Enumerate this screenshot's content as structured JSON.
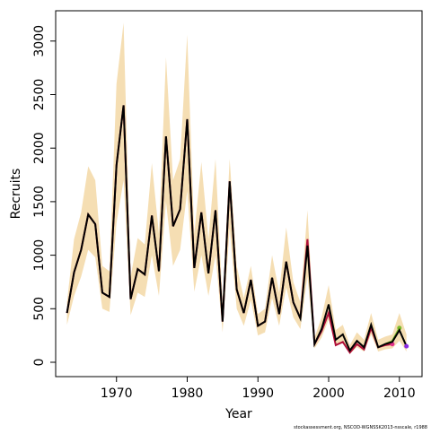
{
  "chart_data": {
    "type": "line",
    "xlabel": "Year",
    "ylabel": "Recruits",
    "footnote": "stockassessment.org, NSCOD-WGNSSK2013-nsscale, r1988",
    "x": [
      1963,
      1964,
      1965,
      1966,
      1967,
      1968,
      1969,
      1970,
      1971,
      1972,
      1973,
      1974,
      1975,
      1976,
      1977,
      1978,
      1979,
      1980,
      1981,
      1982,
      1983,
      1984,
      1985,
      1986,
      1987,
      1988,
      1989,
      1990,
      1991,
      1992,
      1993,
      1994,
      1995,
      1996,
      1997,
      1998,
      1999,
      2000,
      2001,
      2002,
      2003,
      2004,
      2005,
      2006,
      2007,
      2008,
      2009,
      2010,
      2011
    ],
    "band": {
      "color": "#f5deb3",
      "upper": [
        560,
        1150,
        1400,
        1830,
        1700,
        900,
        850,
        2600,
        3170,
        800,
        1160,
        1100,
        1860,
        1200,
        2850,
        1700,
        1900,
        3060,
        1200,
        1870,
        1150,
        1900,
        550,
        1900,
        900,
        600,
        900,
        450,
        500,
        1000,
        650,
        1260,
        750,
        560,
        1420,
        230,
        420,
        720,
        300,
        350,
        160,
        280,
        210,
        460,
        210,
        240,
        260,
        460,
        260
      ],
      "lower": [
        350,
        620,
        800,
        1050,
        980,
        500,
        470,
        1300,
        1700,
        440,
        650,
        610,
        1000,
        620,
        1500,
        900,
        1050,
        1600,
        660,
        1000,
        620,
        1000,
        280,
        1250,
        500,
        340,
        580,
        250,
        280,
        600,
        340,
        700,
        420,
        310,
        800,
        130,
        230,
        400,
        150,
        190,
        80,
        140,
        100,
        260,
        100,
        120,
        130,
        200,
        100
      ]
    },
    "series": [
      {
        "color": "#000000",
        "marker_color": "#8a2be2",
        "values": [
          460,
          840,
          1050,
          1380,
          1290,
          650,
          610,
          1840,
          2400,
          590,
          870,
          820,
          1370,
          850,
          2110,
          1270,
          1430,
          2270,
          880,
          1400,
          830,
          1420,
          380,
          1690,
          680,
          460,
          770,
          340,
          380,
          790,
          450,
          940,
          560,
          410,
          1090,
          170,
          310,
          540,
          210,
          260,
          110,
          200,
          140,
          350,
          140,
          170,
          190,
          300,
          150
        ]
      },
      {
        "color": "#b0103a",
        "marker_color": "#e0308a",
        "values": [
          460,
          840,
          1050,
          1380,
          1290,
          650,
          610,
          1840,
          2400,
          590,
          870,
          820,
          1370,
          850,
          2110,
          1270,
          1430,
          2270,
          880,
          1400,
          830,
          1420,
          380,
          1690,
          680,
          460,
          770,
          340,
          380,
          790,
          450,
          940,
          560,
          410,
          1150,
          170,
          290,
          460,
          160,
          190,
          90,
          170,
          120,
          320,
          140,
          160,
          170,
          null,
          null
        ]
      },
      {
        "color": "#7cbc2c",
        "marker_color": "#7cbc2c",
        "values": [
          null,
          null,
          null,
          null,
          null,
          null,
          null,
          null,
          null,
          null,
          null,
          null,
          null,
          null,
          null,
          null,
          null,
          null,
          null,
          null,
          null,
          null,
          null,
          null,
          null,
          null,
          null,
          null,
          null,
          null,
          null,
          null,
          null,
          null,
          null,
          null,
          null,
          null,
          null,
          null,
          null,
          null,
          null,
          null,
          null,
          170,
          200,
          320,
          null
        ]
      }
    ],
    "xlim": [
      1961.4,
      2013.2
    ],
    "ylim": [
      -134,
      3283
    ],
    "xticks": [
      1970,
      1980,
      1990,
      2000,
      2010
    ],
    "yticks": [
      0,
      500,
      1000,
      1500,
      2000,
      2500,
      3000
    ]
  }
}
